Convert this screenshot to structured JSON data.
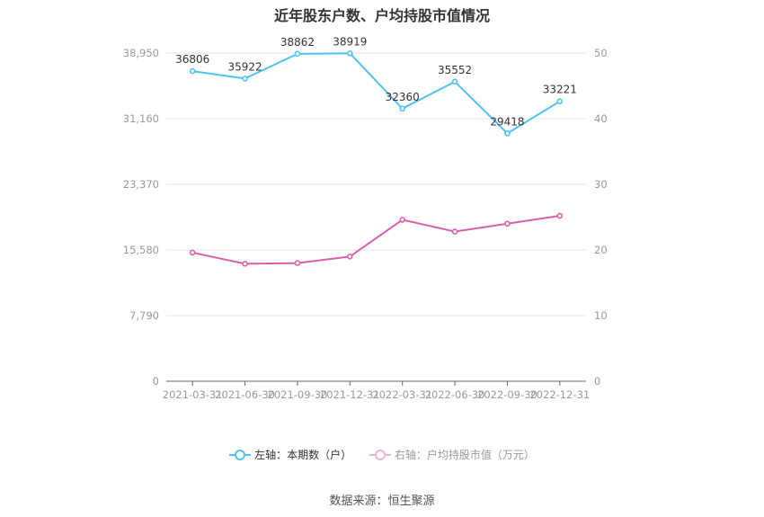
{
  "chart_data": {
    "type": "line",
    "title": "近年股东户数、户均持股市值情况",
    "categories": [
      "2021-03-31",
      "2021-06-30",
      "2021-09-30",
      "2021-12-31",
      "2022-03-31",
      "2022-06-30",
      "2022-09-30",
      "2022-12-31"
    ],
    "left_axis": {
      "ticks": [
        "0",
        "7,790",
        "15,580",
        "23,370",
        "31,160",
        "38,950"
      ],
      "range": [
        0,
        38950
      ]
    },
    "right_axis": {
      "ticks": [
        "0",
        "10",
        "20",
        "30",
        "40",
        "50"
      ],
      "range": [
        0,
        50
      ]
    },
    "series": [
      {
        "name": "左轴：本期数（户）",
        "axis": "left",
        "color": "#4fc1f5",
        "values": [
          36806,
          35922,
          38862,
          38919,
          32360,
          35552,
          29418,
          33221
        ],
        "labels": [
          "36806",
          "35922",
          "38862",
          "38919",
          "32360",
          "35552",
          "29418",
          "33221"
        ]
      },
      {
        "name": "右轴：户均持股市值（万元）",
        "axis": "right",
        "color": "#d95fa8",
        "values": [
          19.6,
          17.9,
          18.0,
          19.0,
          24.6,
          22.8,
          24.0,
          25.2
        ]
      }
    ],
    "grid": true,
    "legend_position": "bottom"
  },
  "source": "数据来源：恒生聚源"
}
